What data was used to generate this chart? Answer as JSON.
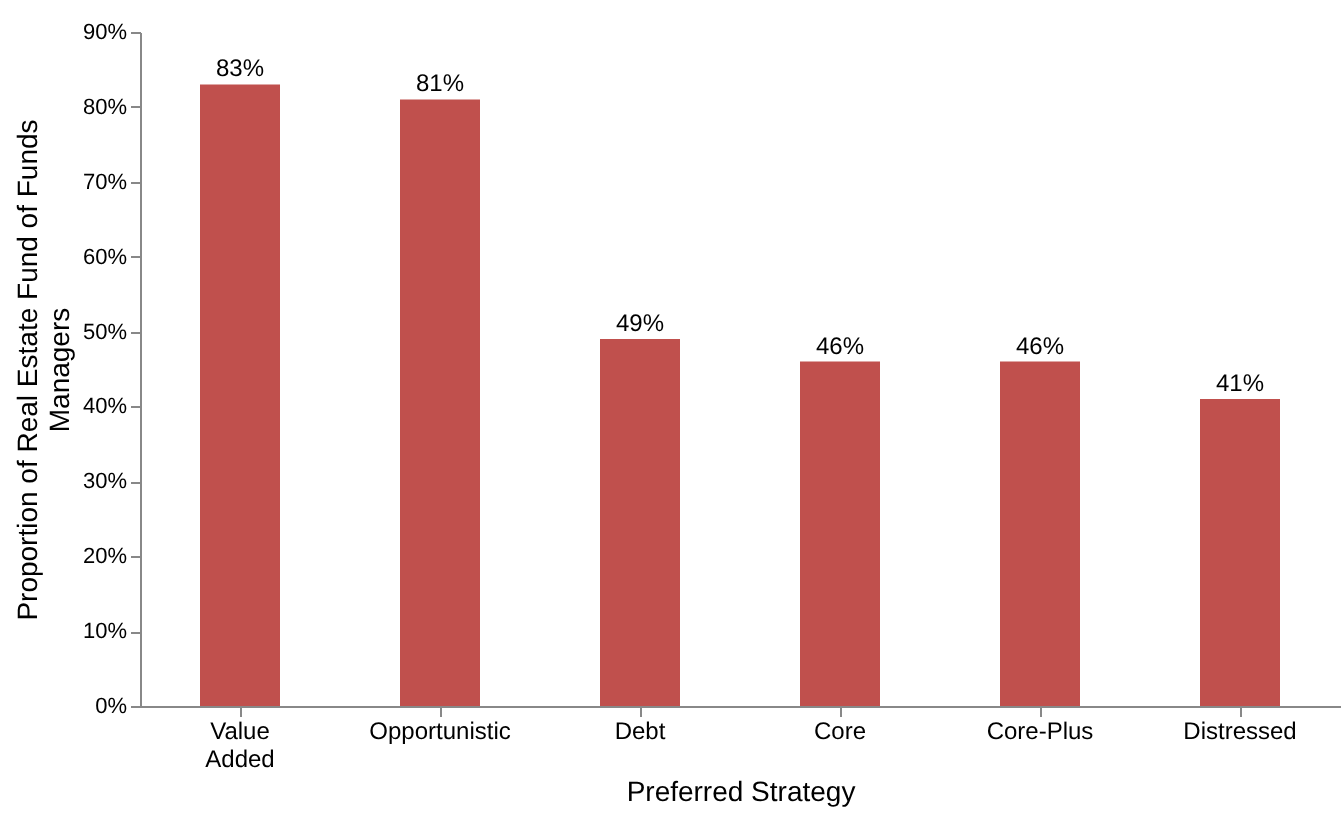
{
  "chart_data": {
    "type": "bar",
    "xlabel": "Preferred Strategy",
    "ylabel": "Proportion of Real Estate Fund of Funds Managers",
    "categories": [
      "Value Added",
      "Opportunistic",
      "Debt",
      "Core",
      "Core-Plus",
      "Distressed"
    ],
    "values": [
      83,
      81,
      49,
      46,
      46,
      41
    ],
    "color": "#c0504d",
    "value_labels": [
      "83%",
      "81%",
      "49%",
      "46%",
      "46%",
      "41%"
    ],
    "ylim": [
      0,
      90
    ],
    "yticks": [
      {
        "value": 0,
        "label": "0%"
      },
      {
        "value": 10,
        "label": "10%"
      },
      {
        "value": 20,
        "label": "20%"
      },
      {
        "value": 30,
        "label": "30%"
      },
      {
        "value": 40,
        "label": "40%"
      },
      {
        "value": 50,
        "label": "50%"
      },
      {
        "value": 60,
        "label": "60%"
      },
      {
        "value": 70,
        "label": "70%"
      },
      {
        "value": 80,
        "label": "80%"
      },
      {
        "value": 90,
        "label": "90%"
      }
    ],
    "grid": false
  }
}
